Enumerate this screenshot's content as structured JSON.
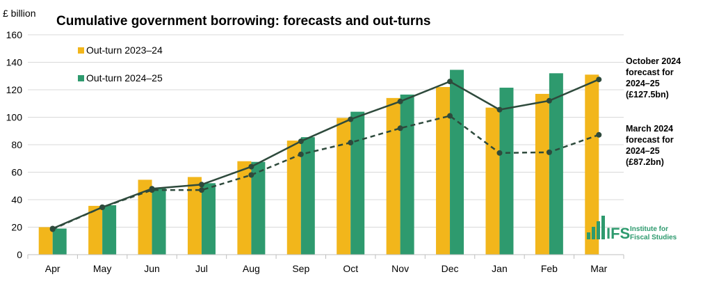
{
  "chart_data": {
    "type": "bar",
    "title": "Cumulative government borrowing: forecasts and out-turns",
    "ylabel": "£ billion",
    "xlabel": "",
    "ylim": [
      0,
      160
    ],
    "yticks": [
      0,
      20,
      40,
      60,
      80,
      100,
      120,
      140,
      160
    ],
    "grid": true,
    "legend_position": "top-left",
    "categories": [
      "Apr",
      "May",
      "Jun",
      "Jul",
      "Aug",
      "Sep",
      "Oct",
      "Nov",
      "Dec",
      "Jan",
      "Feb",
      "Mar"
    ],
    "series": [
      {
        "name": "Out-turn 2023–24",
        "kind": "bar",
        "color": "#f2b61b",
        "values": [
          20,
          35.5,
          54.5,
          56.5,
          68,
          83,
          99.5,
          114,
          122,
          107,
          117,
          131
        ]
      },
      {
        "name": "Out-turn 2024–25",
        "kind": "bar",
        "color": "#2e9a6e",
        "values": [
          19,
          36,
          48.5,
          52,
          67.5,
          85.5,
          104,
          116.5,
          134.5,
          121.5,
          132,
          null
        ]
      },
      {
        "name": "October 2024 forecast for 2024–25",
        "kind": "line",
        "style": "solid",
        "color": "#2e4a3c",
        "values": [
          19,
          34.5,
          48,
          51,
          64,
          82.5,
          98.5,
          111.5,
          126,
          105.5,
          112,
          127.5
        ]
      },
      {
        "name": "March 2024 forecast for 2024–25",
        "kind": "line",
        "style": "dashed",
        "color": "#2e4a3c",
        "values": [
          18.5,
          34.5,
          47,
          47,
          58,
          73,
          81.5,
          92,
          101,
          74,
          74.5,
          87.2
        ]
      }
    ],
    "annotations": [
      {
        "target": "October 2024 forecast for 2024–25",
        "lines": [
          "October 2024",
          "forecast for",
          "2024–25",
          "(£127.5bn)"
        ]
      },
      {
        "target": "March 2024 forecast for 2024–25",
        "lines": [
          "March 2024",
          "forecast for",
          "2024–25",
          "(£87.2bn)"
        ]
      }
    ]
  },
  "logo": {
    "mark": "IFS",
    "line1": "Institute for",
    "line2": "Fiscal Studies",
    "color": "#2e9a6e"
  }
}
